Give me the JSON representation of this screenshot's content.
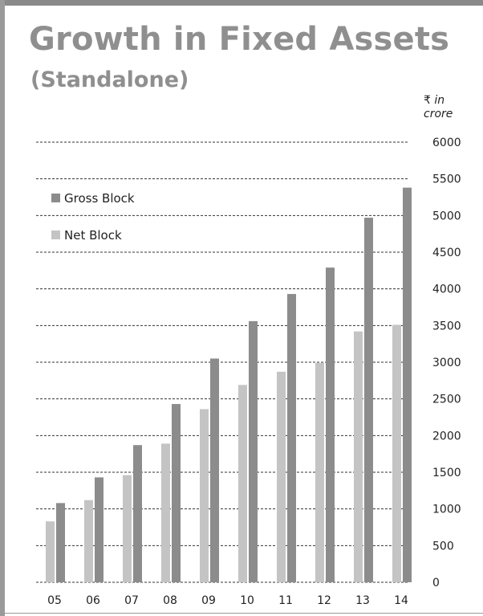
{
  "chart_data": {
    "type": "bar",
    "title": "Growth in Fixed Assets",
    "subtitle": "(Standalone)",
    "unit_symbol": "₹",
    "unit_line1": "in",
    "unit_line2": "crore",
    "categories": [
      "05",
      "06",
      "07",
      "08",
      "09",
      "10",
      "11",
      "12",
      "13",
      "14"
    ],
    "series": [
      {
        "name": "Net Block",
        "color": "#c4c4c4",
        "values": [
          830,
          1120,
          1460,
          1890,
          2360,
          2690,
          2870,
          2990,
          3420,
          3510
        ]
      },
      {
        "name": "Gross Block",
        "color": "#8c8c8c",
        "values": [
          1080,
          1430,
          1870,
          2430,
          3050,
          3560,
          3930,
          4290,
          4970,
          5380
        ]
      }
    ],
    "legend_order": [
      "Gross Block",
      "Net Block"
    ],
    "ylim": [
      0,
      6000
    ],
    "yticks": [
      0,
      500,
      1000,
      1500,
      2000,
      2500,
      3000,
      3500,
      4000,
      4500,
      5000,
      5500,
      6000
    ],
    "grid": true,
    "grid_style": "dashed",
    "legend_position": "top-left"
  }
}
